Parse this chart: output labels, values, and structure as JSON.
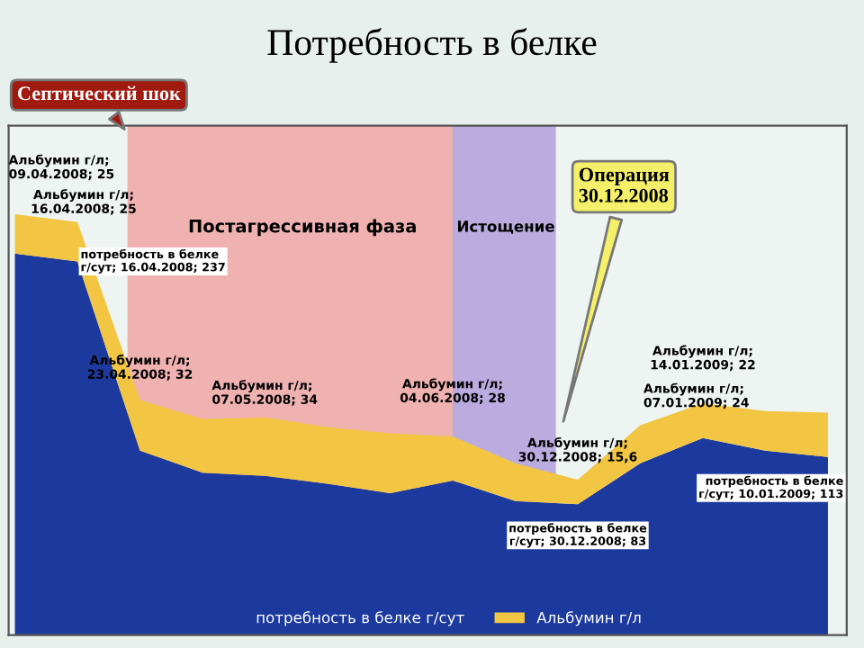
{
  "chart_data": {
    "type": "area",
    "title": "Потребность в белке",
    "categories": [
      null,
      null,
      null,
      null,
      null,
      null,
      null,
      null,
      null,
      null,
      null,
      null,
      null,
      null
    ],
    "stacked": true,
    "legend": "bottom",
    "series": [
      {
        "name": "потребность в белке г/сут",
        "color": "#1c3a9e",
        "values": [
          242,
          237,
          117,
          103,
          101,
          96,
          90,
          98,
          85,
          83,
          109,
          125,
          117,
          113
        ],
        "value_labels": [
          null,
          "потребность в белке\nг/сут; 16.04.2008; 237",
          null,
          null,
          null,
          null,
          null,
          null,
          null,
          "потребность в белке\nг/сут; 30.12.2008; 83",
          null,
          null,
          null,
          "потребность в белке\nг/сут; 10.01.2009; 113"
        ]
      },
      {
        "name": "Альбумин г/л",
        "color": "#f2c643",
        "values": [
          25,
          25,
          32,
          34,
          37,
          36,
          38,
          28,
          24,
          15.6,
          24,
          22,
          25,
          28
        ],
        "value_labels": [
          "Альбумин г/л;\n09.04.2008; 25",
          "Альбумин г/л;\n16.04.2008; 25",
          "Альбумин г/л;\n23.04.2008; 32",
          "Альбумин г/л;\n07.05.2008; 34",
          null,
          null,
          null,
          "Альбумин г/л;\n04.06.2008; 28",
          null,
          "Альбумин г/л;\n30.12.2008; 15,6",
          "Альбумин г/л;\n07.01.2009; 24",
          "Альбумин г/л;\n14.01.2009; 22",
          null,
          null
        ]
      }
    ],
    "annotations": [
      "Септический шок",
      "Операция\n30.12.2008",
      "Постагрессивная фаза",
      "Истощение"
    ]
  }
}
